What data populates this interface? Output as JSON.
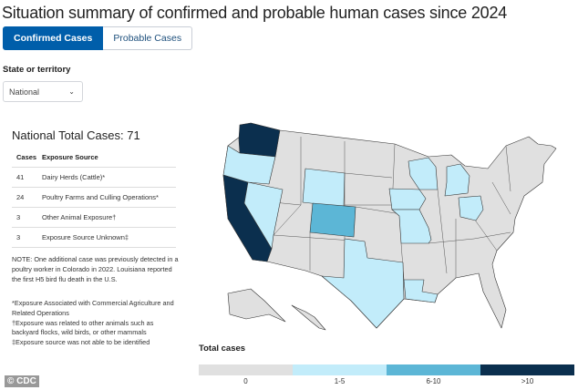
{
  "title": "Situation summary of confirmed and probable human cases since 2024",
  "tabs": [
    {
      "label": "Confirmed Cases",
      "active": true
    },
    {
      "label": "Probable Cases",
      "active": false
    }
  ],
  "filter": {
    "label": "State or territory",
    "value": "National"
  },
  "summary": {
    "total_label": "National Total Cases: 71",
    "headers": [
      "Cases",
      "Exposure Source"
    ],
    "rows": [
      {
        "cases": "41",
        "source": "Dairy Herds (Cattle)*"
      },
      {
        "cases": "24",
        "source": "Poultry Farms and Culling Operations*"
      },
      {
        "cases": "3",
        "source": "Other Animal Exposure†"
      },
      {
        "cases": "3",
        "source": "Exposure Source Unknown‡"
      }
    ],
    "note": "NOTE: One additional case was previously detected in a poultry worker in Colorado in 2022. Louisiana reported the first H5 bird flu death in the U.S.",
    "footnotes": [
      "*Exposure Associated with Commercial Agriculture and Related Operations",
      "†Exposure was related to other animals such as backyard flocks, wild birds, or other mammals",
      "‡Exposure source was not able to be identified"
    ]
  },
  "map": {
    "states": {
      "WA": ">10",
      "CA": ">10",
      "CO": "6-10",
      "OR": "1-5",
      "NV": "1-5",
      "WY": "1-5",
      "TX": "1-5",
      "LA": "1-5",
      "IA": "1-5",
      "MO": "1-5",
      "WI": "1-5",
      "MI": "1-5",
      "OH": "1-5"
    }
  },
  "legend": {
    "title": "Total cases",
    "bins": [
      {
        "label": "0",
        "color": "#e0e0e0"
      },
      {
        "label": "1-5",
        "color": "#c2ecfa"
      },
      {
        "label": "6-10",
        "color": "#5cb6d6"
      },
      {
        "label": ">10",
        "color": "#0b2f4e"
      }
    ]
  },
  "credit": "© CDC"
}
